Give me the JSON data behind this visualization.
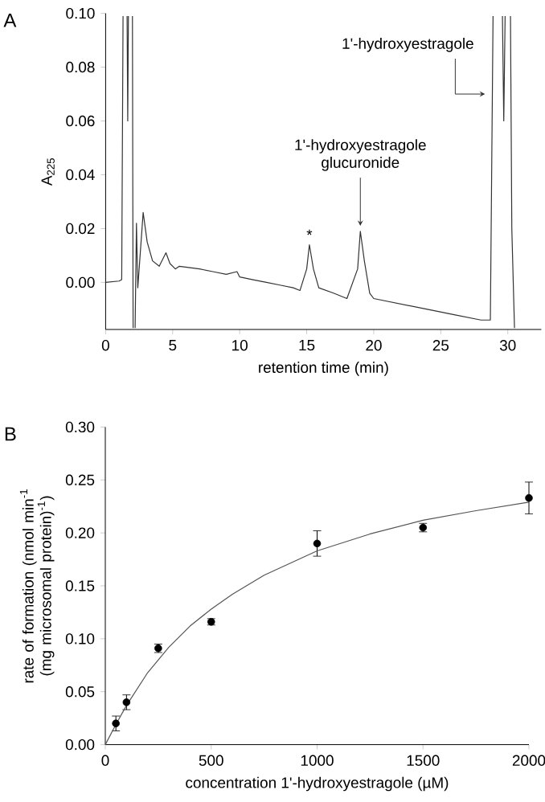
{
  "chart_data": [
    {
      "type": "line",
      "xlabel": "retention time (min)",
      "ylabel": "A$_{225}$",
      "color": "#333333",
      "x": [
        0,
        1.0,
        1.2,
        1.3,
        1.45,
        1.6,
        1.65,
        1.7,
        1.85,
        2.0,
        2.05,
        2.12,
        2.2,
        2.3,
        2.4,
        2.5,
        2.8,
        3.1,
        3.5,
        4.0,
        4.5,
        4.8,
        5.2,
        5.5,
        7,
        8,
        9,
        9.8,
        10,
        11,
        12,
        13,
        14,
        14.5,
        15.0,
        15.2,
        15.5,
        15.9,
        17,
        18,
        18.8,
        19.0,
        19.3,
        19.7,
        20,
        22,
        24,
        26,
        28,
        28.7,
        28.9,
        29.3,
        29.6,
        29.7,
        29.8,
        30.0,
        30.2,
        30.3,
        30.5
      ],
      "values": [
        0.0,
        0.0005,
        0.001,
        0.099,
        null,
        0.099,
        0.06,
        0.099,
        null,
        0.099,
        -0.017,
        null,
        -0.017,
        0.022,
        -0.002,
        0.005,
        0.026,
        0.015,
        0.008,
        0.006,
        0.011,
        0.007,
        0.005,
        0.006,
        0.005,
        0.004,
        0.003,
        0.004,
        0.002,
        0.001,
        0.0,
        -0.001,
        -0.002,
        -0.003,
        0.005,
        0.014,
        0.005,
        -0.002,
        -0.004,
        -0.006,
        0.005,
        0.019,
        0.008,
        -0.004,
        -0.006,
        -0.008,
        -0.01,
        -0.012,
        -0.014,
        -0.014,
        0.099,
        null,
        0.099,
        0.06,
        0.099,
        null,
        0.099,
        0.02,
        -0.017
      ],
      "xlim": [
        0,
        32.5
      ],
      "ylim": [
        -0.0175,
        0.1
      ],
      "xticks": [
        0,
        5,
        10,
        15,
        20,
        25,
        30
      ],
      "yticks": [
        {
          "value": 0,
          "label": "0.00"
        },
        {
          "value": 0.02,
          "label": "0.02"
        },
        {
          "value": 0.04,
          "label": "0.04"
        },
        {
          "value": 0.06,
          "label": "0.06"
        },
        {
          "value": 0.08,
          "label": "0.08"
        },
        {
          "value": 0.1,
          "label": "0.10"
        }
      ],
      "annotations": [
        "A",
        {
          "text": "*",
          "x": 15.2,
          "y": 0.015
        },
        {
          "text": "1'-hydroxyestragole glucuronide",
          "x": 19.0,
          "y": 0.021
        },
        {
          "text": "1'-hydroxyestragole",
          "x": 28.3,
          "y": 0.07
        }
      ]
    },
    {
      "type": "scatter",
      "xlabel": "concentration 1'-hydroxyestragole (µM)",
      "ylabel": "rate of formation (nmol min$^{-1}$ (mg microsomal protein)$^{-1}$)",
      "series": [
        {
          "type": "scatter",
          "color": "#000000",
          "marker": "circle",
          "x": [
            50,
            100,
            250,
            500,
            1000,
            1500,
            2000
          ],
          "values": [
            0.02,
            0.04,
            0.091,
            0.116,
            0.19,
            0.205,
            0.233
          ],
          "errors": [
            0.007,
            0.007,
            0.004,
            0.003,
            0.012,
            0.004,
            0.015
          ]
        },
        {
          "type": "line",
          "color": "#555555",
          "x": [
            0,
            50,
            100,
            200,
            300,
            400,
            500,
            600,
            750,
            1000,
            1250,
            1500,
            1750,
            2000
          ],
          "values": [
            0,
            0.019,
            0.037,
            0.068,
            0.092,
            0.112,
            0.128,
            0.142,
            0.16,
            0.183,
            0.199,
            0.212,
            0.221,
            0.229
          ]
        }
      ],
      "xlim": [
        0,
        2000
      ],
      "ylim": [
        0,
        0.3
      ],
      "xticks": [
        0,
        500,
        1000,
        1500,
        2000
      ],
      "yticks": [
        {
          "value": 0,
          "label": "0.00"
        },
        {
          "value": 0.05,
          "label": "0.05"
        },
        {
          "value": 0.1,
          "label": "0.10"
        },
        {
          "value": 0.15,
          "label": "0.15"
        },
        {
          "value": 0.2,
          "label": "0.20"
        },
        {
          "value": 0.25,
          "label": "0.25"
        },
        {
          "value": 0.3,
          "label": "0.30"
        }
      ],
      "annotations": [
        "B"
      ]
    }
  ]
}
